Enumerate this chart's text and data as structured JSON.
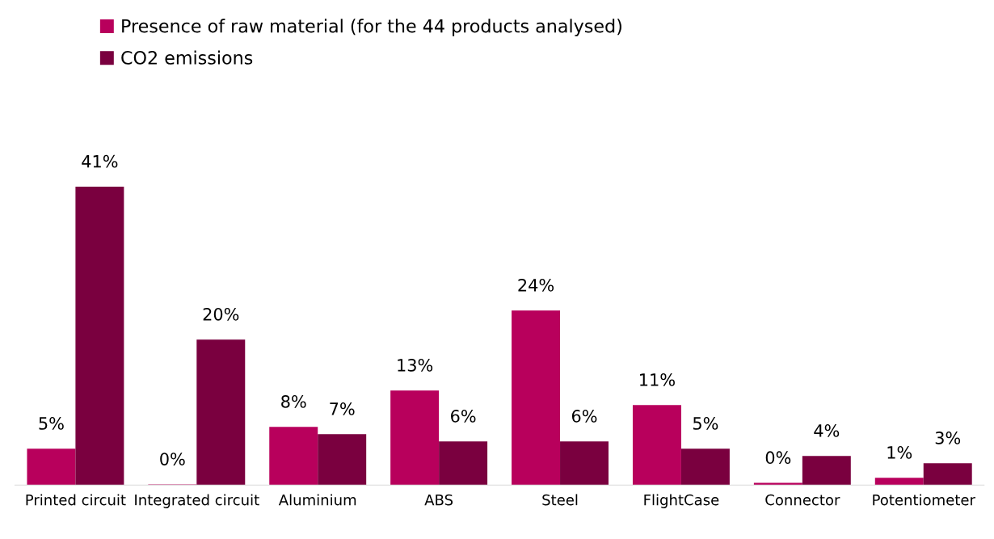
{
  "chart_data": {
    "type": "bar",
    "categories": [
      "Printed circuit",
      "Integrated circuit",
      "Aluminium",
      "ABS",
      "Steel",
      "FlightCase",
      "Connector",
      "Potentiometer"
    ],
    "series": [
      {
        "name": "Presence of raw material (for the 44 products analysed)",
        "color": "#b8005c",
        "values": [
          5,
          0.1,
          8,
          13,
          24,
          11,
          0.3,
          1
        ],
        "value_labels": [
          "5%",
          "0%",
          "8%",
          "13%",
          "24%",
          "11%",
          "0%",
          "1%"
        ]
      },
      {
        "name": "CO2 emissions",
        "color": "#7a003f",
        "values": [
          41,
          20,
          7,
          6,
          6,
          5,
          4,
          3
        ],
        "value_labels": [
          "41%",
          "20%",
          "7%",
          "6%",
          "6%",
          "5%",
          "4%",
          "3%"
        ]
      }
    ],
    "legend": "top left",
    "grid": false
  }
}
